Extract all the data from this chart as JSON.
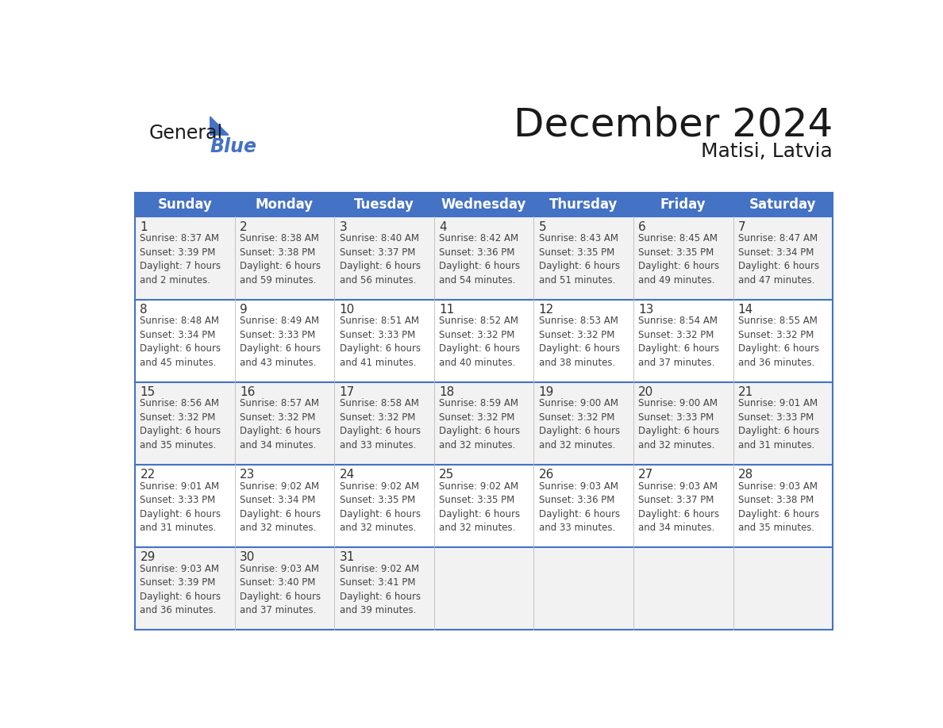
{
  "title": "December 2024",
  "subtitle": "Matisi, Latvia",
  "days_of_week": [
    "Sunday",
    "Monday",
    "Tuesday",
    "Wednesday",
    "Thursday",
    "Friday",
    "Saturday"
  ],
  "header_bg": "#4472C4",
  "header_text": "#FFFFFF",
  "row_bg_odd": "#F2F2F2",
  "row_bg_even": "#FFFFFF",
  "row_line_color": "#4472C4",
  "cell_text_color": "#444444",
  "day_number_color": "#333333",
  "logo_triangle_color": "#4472C4",
  "calendar_data": [
    [
      {
        "day": 1,
        "sunrise": "8:37 AM",
        "sunset": "3:39 PM",
        "daylight": "7 hours\nand 2 minutes."
      },
      {
        "day": 2,
        "sunrise": "8:38 AM",
        "sunset": "3:38 PM",
        "daylight": "6 hours\nand 59 minutes."
      },
      {
        "day": 3,
        "sunrise": "8:40 AM",
        "sunset": "3:37 PM",
        "daylight": "6 hours\nand 56 minutes."
      },
      {
        "day": 4,
        "sunrise": "8:42 AM",
        "sunset": "3:36 PM",
        "daylight": "6 hours\nand 54 minutes."
      },
      {
        "day": 5,
        "sunrise": "8:43 AM",
        "sunset": "3:35 PM",
        "daylight": "6 hours\nand 51 minutes."
      },
      {
        "day": 6,
        "sunrise": "8:45 AM",
        "sunset": "3:35 PM",
        "daylight": "6 hours\nand 49 minutes."
      },
      {
        "day": 7,
        "sunrise": "8:47 AM",
        "sunset": "3:34 PM",
        "daylight": "6 hours\nand 47 minutes."
      }
    ],
    [
      {
        "day": 8,
        "sunrise": "8:48 AM",
        "sunset": "3:34 PM",
        "daylight": "6 hours\nand 45 minutes."
      },
      {
        "day": 9,
        "sunrise": "8:49 AM",
        "sunset": "3:33 PM",
        "daylight": "6 hours\nand 43 minutes."
      },
      {
        "day": 10,
        "sunrise": "8:51 AM",
        "sunset": "3:33 PM",
        "daylight": "6 hours\nand 41 minutes."
      },
      {
        "day": 11,
        "sunrise": "8:52 AM",
        "sunset": "3:32 PM",
        "daylight": "6 hours\nand 40 minutes."
      },
      {
        "day": 12,
        "sunrise": "8:53 AM",
        "sunset": "3:32 PM",
        "daylight": "6 hours\nand 38 minutes."
      },
      {
        "day": 13,
        "sunrise": "8:54 AM",
        "sunset": "3:32 PM",
        "daylight": "6 hours\nand 37 minutes."
      },
      {
        "day": 14,
        "sunrise": "8:55 AM",
        "sunset": "3:32 PM",
        "daylight": "6 hours\nand 36 minutes."
      }
    ],
    [
      {
        "day": 15,
        "sunrise": "8:56 AM",
        "sunset": "3:32 PM",
        "daylight": "6 hours\nand 35 minutes."
      },
      {
        "day": 16,
        "sunrise": "8:57 AM",
        "sunset": "3:32 PM",
        "daylight": "6 hours\nand 34 minutes."
      },
      {
        "day": 17,
        "sunrise": "8:58 AM",
        "sunset": "3:32 PM",
        "daylight": "6 hours\nand 33 minutes."
      },
      {
        "day": 18,
        "sunrise": "8:59 AM",
        "sunset": "3:32 PM",
        "daylight": "6 hours\nand 32 minutes."
      },
      {
        "day": 19,
        "sunrise": "9:00 AM",
        "sunset": "3:32 PM",
        "daylight": "6 hours\nand 32 minutes."
      },
      {
        "day": 20,
        "sunrise": "9:00 AM",
        "sunset": "3:33 PM",
        "daylight": "6 hours\nand 32 minutes."
      },
      {
        "day": 21,
        "sunrise": "9:01 AM",
        "sunset": "3:33 PM",
        "daylight": "6 hours\nand 31 minutes."
      }
    ],
    [
      {
        "day": 22,
        "sunrise": "9:01 AM",
        "sunset": "3:33 PM",
        "daylight": "6 hours\nand 31 minutes."
      },
      {
        "day": 23,
        "sunrise": "9:02 AM",
        "sunset": "3:34 PM",
        "daylight": "6 hours\nand 32 minutes."
      },
      {
        "day": 24,
        "sunrise": "9:02 AM",
        "sunset": "3:35 PM",
        "daylight": "6 hours\nand 32 minutes."
      },
      {
        "day": 25,
        "sunrise": "9:02 AM",
        "sunset": "3:35 PM",
        "daylight": "6 hours\nand 32 minutes."
      },
      {
        "day": 26,
        "sunrise": "9:03 AM",
        "sunset": "3:36 PM",
        "daylight": "6 hours\nand 33 minutes."
      },
      {
        "day": 27,
        "sunrise": "9:03 AM",
        "sunset": "3:37 PM",
        "daylight": "6 hours\nand 34 minutes."
      },
      {
        "day": 28,
        "sunrise": "9:03 AM",
        "sunset": "3:38 PM",
        "daylight": "6 hours\nand 35 minutes."
      }
    ],
    [
      {
        "day": 29,
        "sunrise": "9:03 AM",
        "sunset": "3:39 PM",
        "daylight": "6 hours\nand 36 minutes."
      },
      {
        "day": 30,
        "sunrise": "9:03 AM",
        "sunset": "3:40 PM",
        "daylight": "6 hours\nand 37 minutes."
      },
      {
        "day": 31,
        "sunrise": "9:02 AM",
        "sunset": "3:41 PM",
        "daylight": "6 hours\nand 39 minutes."
      },
      null,
      null,
      null,
      null
    ]
  ]
}
